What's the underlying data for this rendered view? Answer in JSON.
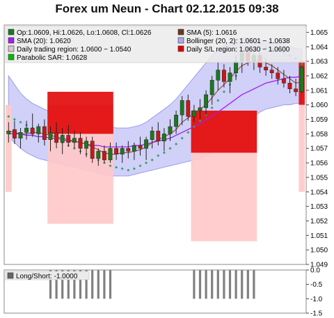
{
  "title": "Forex um Neun - Chart 02.12.2015 09:38",
  "legend": [
    {
      "swatch": "#1b7a1b",
      "label": "Op:1.0609, Hi:1.0626, Lo:1.0608, Cl:1.0626"
    },
    {
      "swatch": "#6b3a1e",
      "label": "SMA (5): 1.0616"
    },
    {
      "swatch": "#a020f0",
      "label": "SMA (20): 1.0620"
    },
    {
      "swatch": "#aaaaee",
      "label": "Bollinger (20, 2): 1.0601 − 1.0638"
    },
    {
      "swatch": "#d9c8c8",
      "label": "Daily trading region: 1.0600 − 1.0540"
    },
    {
      "swatch": "#e00000",
      "label": "Daily S/L region: 1.0630 − 1.0600"
    },
    {
      "swatch": "#00bb00",
      "label": "Parabolic SAR: 1.0628"
    }
  ],
  "bottom_legend": {
    "swatch": "#666666",
    "label": "Long/Short: -1.0000"
  },
  "colors": {
    "bull": "#1b7a1b",
    "bear": "#c81818",
    "sma5": "#8b4a2b",
    "sma20": "#a020f0",
    "bollinger": "#c8c8f8",
    "trading_region": "#ffc8c8",
    "sl_region": "#e00000",
    "sar": "#3aa060",
    "position": "#808080"
  },
  "chart_data": [
    {
      "type": "candlestick",
      "title": "Forex um Neun - Chart 02.12.2015 09:38",
      "ylim": [
        1.049,
        1.0655
      ],
      "y_ticks": [
        "1.065",
        "1.064",
        "1.063",
        "1.062",
        "1.061",
        "1.060",
        "1.059",
        "1.058",
        "1.057",
        "1.056",
        "1.055",
        "1.054",
        "1.053",
        "1.052",
        "1.051",
        "1.050",
        "1.049"
      ],
      "candles": [
        {
          "o": 1.058,
          "h": 1.0588,
          "l": 1.0574,
          "c": 1.0582
        },
        {
          "o": 1.0583,
          "h": 1.0589,
          "l": 1.0573,
          "c": 1.0577
        },
        {
          "o": 1.0577,
          "h": 1.0584,
          "l": 1.057,
          "c": 1.0581
        },
        {
          "o": 1.0581,
          "h": 1.0589,
          "l": 1.0576,
          "c": 1.0584
        },
        {
          "o": 1.0584,
          "h": 1.0594,
          "l": 1.0578,
          "c": 1.058
        },
        {
          "o": 1.058,
          "h": 1.0587,
          "l": 1.0574,
          "c": 1.0585
        },
        {
          "o": 1.0585,
          "h": 1.059,
          "l": 1.0572,
          "c": 1.0576
        },
        {
          "o": 1.0576,
          "h": 1.0585,
          "l": 1.0568,
          "c": 1.0581
        },
        {
          "o": 1.0581,
          "h": 1.0588,
          "l": 1.057,
          "c": 1.0574
        },
        {
          "o": 1.0574,
          "h": 1.0584,
          "l": 1.0566,
          "c": 1.0579
        },
        {
          "o": 1.0579,
          "h": 1.0586,
          "l": 1.0571,
          "c": 1.0574
        },
        {
          "o": 1.0574,
          "h": 1.0582,
          "l": 1.057,
          "c": 1.0577
        },
        {
          "o": 1.0577,
          "h": 1.0581,
          "l": 1.0566,
          "c": 1.057
        },
        {
          "o": 1.057,
          "h": 1.0578,
          "l": 1.0564,
          "c": 1.0575
        },
        {
          "o": 1.0575,
          "h": 1.0578,
          "l": 1.056,
          "c": 1.0563
        },
        {
          "o": 1.0563,
          "h": 1.057,
          "l": 1.0558,
          "c": 1.0568
        },
        {
          "o": 1.0568,
          "h": 1.0572,
          "l": 1.056,
          "c": 1.0562
        },
        {
          "o": 1.0562,
          "h": 1.0574,
          "l": 1.056,
          "c": 1.057
        },
        {
          "o": 1.057,
          "h": 1.0574,
          "l": 1.0562,
          "c": 1.0566
        },
        {
          "o": 1.0566,
          "h": 1.0572,
          "l": 1.056,
          "c": 1.057
        },
        {
          "o": 1.057,
          "h": 1.0575,
          "l": 1.0563,
          "c": 1.0568
        },
        {
          "o": 1.0568,
          "h": 1.0574,
          "l": 1.0562,
          "c": 1.0572
        },
        {
          "o": 1.0572,
          "h": 1.0578,
          "l": 1.0565,
          "c": 1.057
        },
        {
          "o": 1.057,
          "h": 1.0578,
          "l": 1.0562,
          "c": 1.0576
        },
        {
          "o": 1.0576,
          "h": 1.0585,
          "l": 1.057,
          "c": 1.0582
        },
        {
          "o": 1.0582,
          "h": 1.0588,
          "l": 1.0572,
          "c": 1.0575
        },
        {
          "o": 1.0575,
          "h": 1.0584,
          "l": 1.0568,
          "c": 1.058
        },
        {
          "o": 1.058,
          "h": 1.059,
          "l": 1.0575,
          "c": 1.0585
        },
        {
          "o": 1.0585,
          "h": 1.0596,
          "l": 1.058,
          "c": 1.0593
        },
        {
          "o": 1.0593,
          "h": 1.0606,
          "l": 1.0586,
          "c": 1.0603
        },
        {
          "o": 1.0603,
          "h": 1.0607,
          "l": 1.0589,
          "c": 1.0592
        },
        {
          "o": 1.0592,
          "h": 1.06,
          "l": 1.0588,
          "c": 1.0596
        },
        {
          "o": 1.0596,
          "h": 1.0604,
          "l": 1.059,
          "c": 1.0598
        },
        {
          "o": 1.0598,
          "h": 1.061,
          "l": 1.0593,
          "c": 1.0607
        },
        {
          "o": 1.0607,
          "h": 1.062,
          "l": 1.06,
          "c": 1.0617
        },
        {
          "o": 1.0617,
          "h": 1.063,
          "l": 1.061,
          "c": 1.0624
        },
        {
          "o": 1.0624,
          "h": 1.0628,
          "l": 1.0612,
          "c": 1.0616
        },
        {
          "o": 1.0616,
          "h": 1.0626,
          "l": 1.0608,
          "c": 1.0622
        },
        {
          "o": 1.0622,
          "h": 1.0634,
          "l": 1.0617,
          "c": 1.063
        },
        {
          "o": 1.063,
          "h": 1.0637,
          "l": 1.0622,
          "c": 1.0636
        },
        {
          "o": 1.0636,
          "h": 1.0638,
          "l": 1.0627,
          "c": 1.063
        },
        {
          "o": 1.063,
          "h": 1.0636,
          "l": 1.0624,
          "c": 1.0634
        },
        {
          "o": 1.0634,
          "h": 1.0636,
          "l": 1.0622,
          "c": 1.0626
        },
        {
          "o": 1.0626,
          "h": 1.0632,
          "l": 1.062,
          "c": 1.0624
        },
        {
          "o": 1.0624,
          "h": 1.0628,
          "l": 1.0618,
          "c": 1.0622
        },
        {
          "o": 1.0622,
          "h": 1.0626,
          "l": 1.0614,
          "c": 1.0618
        },
        {
          "o": 1.0618,
          "h": 1.0624,
          "l": 1.0612,
          "c": 1.0615
        },
        {
          "o": 1.0615,
          "h": 1.062,
          "l": 1.0608,
          "c": 1.0611
        },
        {
          "o": 1.0611,
          "h": 1.0618,
          "l": 1.0606,
          "c": 1.0609
        },
        {
          "o": 1.0609,
          "h": 1.0626,
          "l": 1.0608,
          "c": 1.0626
        }
      ],
      "sma5": [
        1.0582,
        1.0581,
        1.058,
        1.058,
        1.0581,
        1.0581,
        1.058,
        1.0579,
        1.0578,
        1.0577,
        1.0576,
        1.0575,
        1.0574,
        1.0573,
        1.0571,
        1.0569,
        1.0567,
        1.0566,
        1.0566,
        1.0567,
        1.0567,
        1.0568,
        1.0569,
        1.0571,
        1.0574,
        1.0576,
        1.0578,
        1.058,
        1.0583,
        1.0588,
        1.0591,
        1.0594,
        1.0597,
        1.06,
        1.0605,
        1.061,
        1.0614,
        1.0618,
        1.0623,
        1.0627,
        1.0629,
        1.063,
        1.063,
        1.0629,
        1.0627,
        1.0624,
        1.0621,
        1.0618,
        1.0615,
        1.0616
      ],
      "sma20": [
        1.058,
        1.058,
        1.058,
        1.0579,
        1.0579,
        1.0578,
        1.0578,
        1.0577,
        1.0577,
        1.0576,
        1.0575,
        1.0575,
        1.0574,
        1.0573,
        1.0572,
        1.0572,
        1.0571,
        1.0571,
        1.0571,
        1.0571,
        1.0571,
        1.0572,
        1.0572,
        1.0573,
        1.0574,
        1.0575,
        1.0576,
        1.0577,
        1.0579,
        1.0581,
        1.0583,
        1.0585,
        1.0587,
        1.059,
        1.0592,
        1.0595,
        1.0598,
        1.0601,
        1.0604,
        1.0607,
        1.0609,
        1.0611,
        1.0613,
        1.0615,
        1.0616,
        1.0617,
        1.0618,
        1.0619,
        1.0619,
        1.062
      ],
      "bollinger_upper": [
        1.062,
        1.0614,
        1.0608,
        1.0604,
        1.0601,
        1.0599,
        1.0597,
        1.0595,
        1.0594,
        1.0593,
        1.0592,
        1.0591,
        1.059,
        1.0589,
        1.0588,
        1.0587,
        1.0586,
        1.0585,
        1.0584,
        1.0584,
        1.0584,
        1.0585,
        1.0586,
        1.0588,
        1.0591,
        1.0594,
        1.0597,
        1.06,
        1.0604,
        1.0609,
        1.0614,
        1.0619,
        1.0624,
        1.0629,
        1.0634,
        1.0638,
        1.0641,
        1.0643,
        1.0645,
        1.0646,
        1.0646,
        1.0646,
        1.0645,
        1.0644,
        1.0643,
        1.0642,
        1.0641,
        1.064,
        1.0639,
        1.0638
      ],
      "bollinger_lower": [
        1.0578,
        1.0574,
        1.057,
        1.0567,
        1.0565,
        1.0563,
        1.0562,
        1.0561,
        1.056,
        1.0559,
        1.0558,
        1.0557,
        1.0556,
        1.0555,
        1.0554,
        1.0553,
        1.0552,
        1.0551,
        1.0551,
        1.0551,
        1.0551,
        1.0552,
        1.0553,
        1.0554,
        1.0555,
        1.0556,
        1.0557,
        1.0558,
        1.0559,
        1.056,
        1.0561,
        1.0562,
        1.0563,
        1.0565,
        1.0567,
        1.057,
        1.0573,
        1.0576,
        1.058,
        1.0584,
        1.0588,
        1.0592,
        1.0595,
        1.0597,
        1.0598,
        1.0599,
        1.06,
        1.06,
        1.0601,
        1.0601
      ],
      "sar": [
        1.0592,
        1.059,
        1.0588,
        1.0586,
        1.0584,
        1.0582,
        1.058,
        1.0578,
        1.0576,
        1.0574,
        1.0572,
        1.057,
        1.0568,
        1.0566,
        1.0564,
        1.0562,
        1.056,
        1.0558,
        1.0557,
        1.0556,
        1.0555,
        1.0556,
        1.0558,
        1.056,
        1.0562,
        1.0565,
        1.0567,
        1.057,
        1.0573,
        1.0577,
        1.0581,
        1.0585,
        1.0589,
        1.0593,
        1.0598,
        1.0603,
        1.0609,
        1.0614,
        1.062,
        1.0632,
        1.0636,
        1.0638,
        1.0639,
        1.0639,
        1.0638,
        1.0637,
        1.0636,
        1.0634,
        1.0632,
        1.0628
      ],
      "trading_regions": [
        {
          "from": 0,
          "to": 1,
          "hi": 1.06,
          "lo": 1.054
        },
        {
          "from": 7,
          "to": 18,
          "hi": 1.06,
          "lo": 1.0518
        },
        {
          "from": 31,
          "to": 42,
          "hi": 1.0596,
          "lo": 1.0506
        },
        {
          "from": 49,
          "to": 50,
          "hi": 1.06,
          "lo": 1.054
        }
      ],
      "sl_regions": [
        {
          "from": 7,
          "to": 18,
          "hi": 1.0609,
          "lo": 1.058
        },
        {
          "from": 31,
          "to": 42,
          "hi": 1.0596,
          "lo": 1.0567
        },
        {
          "from": 49,
          "to": 50,
          "hi": 1.063,
          "lo": 1.06
        }
      ]
    },
    {
      "type": "bar",
      "series_name": "Long/Short",
      "ylim": [
        -1.5,
        0.0
      ],
      "y_ticks": [
        "0.0",
        "-0.5",
        "-1.0",
        "-1.5"
      ],
      "bars": [
        {
          "from": 7,
          "to": 18,
          "value": -1.0
        },
        {
          "from": 31,
          "to": 42,
          "value": -1.0
        }
      ]
    }
  ]
}
